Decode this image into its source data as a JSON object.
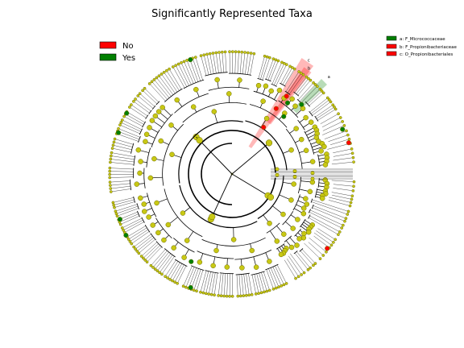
{
  "title": "Significantly Represented Taxa",
  "legend_main": {
    "entries": [
      {
        "label": "No",
        "color": "#ff0000"
      },
      {
        "label": "Yes",
        "color": "#008000"
      }
    ]
  },
  "legend_clades": {
    "entries": [
      {
        "label": "a: F_Micrococcaceae",
        "color": "#008000"
      },
      {
        "label": "b: F_Propionibacteriaceae",
        "color": "#ff0000"
      },
      {
        "label": "c: O_Propionibacteriales",
        "color": "#ff0000"
      }
    ]
  },
  "clade_markers": [
    {
      "letter": "a",
      "color": "#008000"
    },
    {
      "letter": "b",
      "color": "#ff0000"
    },
    {
      "letter": "c",
      "color": "#ff0000"
    }
  ],
  "colors": {
    "node_default": "#c8c814",
    "node_edge": "#6b6b00",
    "branch": "#000000",
    "significant_green": "#008000",
    "significant_red": "#ff0000"
  }
}
